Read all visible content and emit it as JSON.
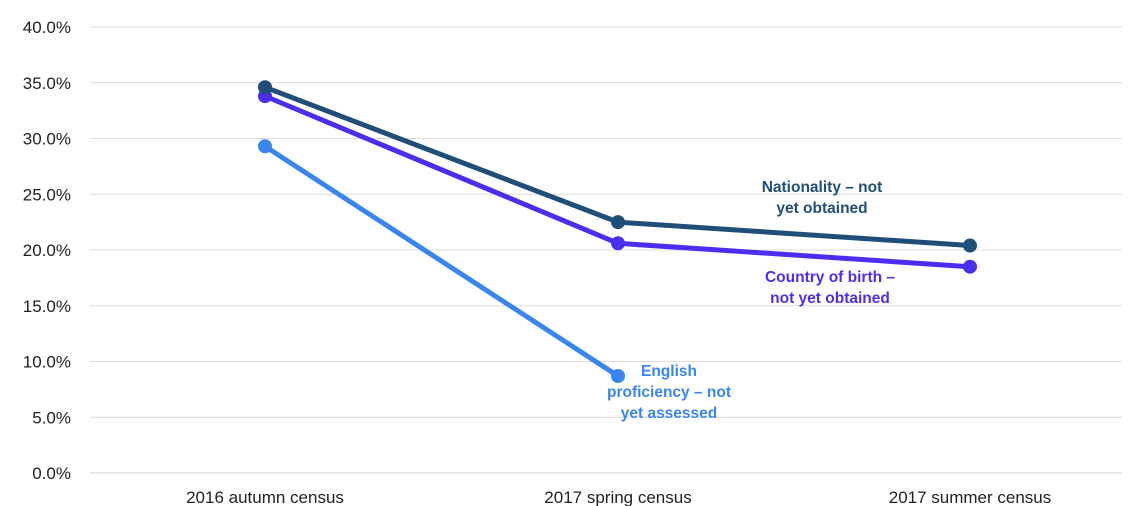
{
  "chart_data": {
    "type": "line",
    "categories": [
      "2016 autumn census",
      "2017 spring census",
      "2017 summer census"
    ],
    "ylim": [
      0,
      40
    ],
    "y_ticks": [
      "0.0%",
      "5.0%",
      "10.0%",
      "15.0%",
      "20.0%",
      "25.0%",
      "30.0%",
      "35.0%",
      "40.0%"
    ],
    "grid": true,
    "series": [
      {
        "name": "Nationality – not yet obtained",
        "label_lines": [
          "Nationality – not",
          "yet obtained"
        ],
        "color": "#1f4e79",
        "values": [
          34.6,
          22.5,
          20.4
        ]
      },
      {
        "name": "Country of birth – not yet obtained",
        "label_lines": [
          "Country of birth –",
          "not yet obtained"
        ],
        "color": "#4b2ff0",
        "values": [
          33.8,
          20.6,
          18.5
        ]
      },
      {
        "name": "English proficiency – not yet assessed",
        "label_lines": [
          "English",
          "proficiency – not",
          "yet assessed"
        ],
        "color": "#3a86f0",
        "values": [
          29.3,
          8.7,
          null
        ]
      }
    ]
  }
}
